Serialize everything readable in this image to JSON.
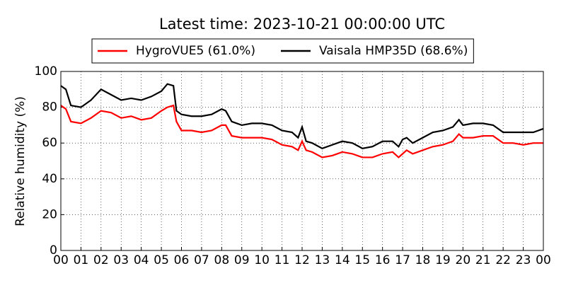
{
  "chart_data": {
    "type": "line",
    "title": "Latest time: 2023-10-21 00:00:00 UTC",
    "ylabel": "Relative humidity (%)",
    "x": [
      0,
      0.25,
      0.5,
      1.0,
      1.5,
      2.0,
      2.5,
      3.0,
      3.5,
      4.0,
      4.5,
      5.0,
      5.3,
      5.6,
      5.75,
      6.0,
      6.5,
      7.0,
      7.5,
      8.0,
      8.2,
      8.5,
      9.0,
      9.5,
      10.0,
      10.5,
      11.0,
      11.5,
      11.8,
      12.0,
      12.2,
      12.5,
      13.0,
      13.5,
      14.0,
      14.5,
      15.0,
      15.5,
      16.0,
      16.5,
      16.8,
      17.0,
      17.2,
      17.5,
      18.0,
      18.5,
      19.0,
      19.5,
      19.8,
      20.0,
      20.5,
      21.0,
      21.5,
      22.0,
      22.5,
      23.0,
      23.5,
      24
    ],
    "series": [
      {
        "name": "HygroVUE5 (61.0%)",
        "color": "#ff0000",
        "values": [
          81,
          79,
          72,
          71,
          74,
          78,
          77,
          74,
          75,
          73,
          74,
          78,
          80,
          81,
          72,
          67,
          67,
          66,
          67,
          70,
          70,
          64,
          63,
          63,
          63,
          62,
          59,
          58,
          56,
          61,
          56,
          55,
          52,
          53,
          55,
          54,
          52,
          52,
          54,
          55,
          52,
          54,
          56,
          54,
          56,
          58,
          59,
          61,
          65,
          63,
          63,
          64,
          64,
          60,
          60,
          59,
          60,
          60
        ]
      },
      {
        "name": "Vaisala HMP35D (68.6%)",
        "color": "#000000",
        "values": [
          92,
          90,
          81,
          80,
          84,
          90,
          87,
          84,
          85,
          84,
          86,
          89,
          93,
          92,
          78,
          76,
          75,
          75,
          76,
          79,
          78,
          72,
          70,
          71,
          71,
          70,
          67,
          66,
          63,
          69,
          61,
          60,
          57,
          59,
          61,
          60,
          57,
          58,
          61,
          61,
          58,
          62,
          63,
          60,
          63,
          66,
          67,
          69,
          73,
          70,
          71,
          71,
          70,
          66,
          66,
          66,
          66,
          68
        ]
      }
    ],
    "xlim": [
      0,
      24
    ],
    "xticks": [
      {
        "value": 0,
        "label": "00"
      },
      {
        "value": 1,
        "label": "01"
      },
      {
        "value": 2,
        "label": "02"
      },
      {
        "value": 3,
        "label": "03"
      },
      {
        "value": 4,
        "label": "04"
      },
      {
        "value": 5,
        "label": "05"
      },
      {
        "value": 6,
        "label": "06"
      },
      {
        "value": 7,
        "label": "07"
      },
      {
        "value": 8,
        "label": "08"
      },
      {
        "value": 9,
        "label": "09"
      },
      {
        "value": 10,
        "label": "10"
      },
      {
        "value": 11,
        "label": "11"
      },
      {
        "value": 12,
        "label": "12"
      },
      {
        "value": 13,
        "label": "13"
      },
      {
        "value": 14,
        "label": "14"
      },
      {
        "value": 15,
        "label": "15"
      },
      {
        "value": 16,
        "label": "16"
      },
      {
        "value": 17,
        "label": "17"
      },
      {
        "value": 18,
        "label": "18"
      },
      {
        "value": 19,
        "label": "19"
      },
      {
        "value": 20,
        "label": "20"
      },
      {
        "value": 21,
        "label": "21"
      },
      {
        "value": 22,
        "label": "22"
      },
      {
        "value": 23,
        "label": "23"
      },
      {
        "value": 24,
        "label": "00"
      }
    ],
    "ylim": [
      0,
      100
    ],
    "yticks": [
      0,
      20,
      40,
      60,
      80,
      100
    ],
    "grid": true
  }
}
